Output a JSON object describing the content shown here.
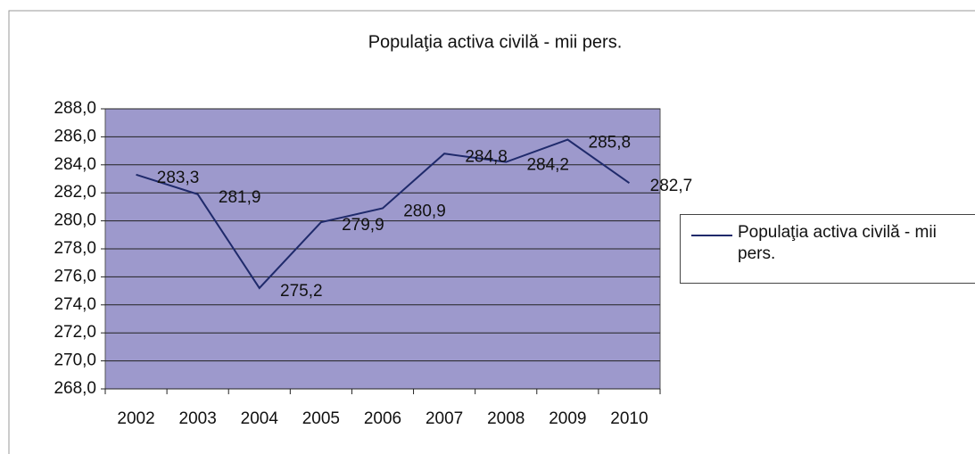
{
  "chart_data": {
    "type": "line",
    "title": "Populaţia activa civilă - mii pers.",
    "categories": [
      "2002",
      "2003",
      "2004",
      "2005",
      "2006",
      "2007",
      "2008",
      "2009",
      "2010"
    ],
    "series": [
      {
        "name": "Populaţia activa civilă - mii pers.",
        "color": "#1f2a6b",
        "values": [
          283.3,
          281.9,
          275.2,
          279.9,
          280.9,
          284.8,
          284.2,
          285.8,
          282.7
        ],
        "value_labels": [
          "283,3",
          "281,9",
          "275,2",
          "279,9",
          "280,9",
          "284,8",
          "284,2",
          "285,8",
          "282,7"
        ]
      }
    ],
    "ylim": [
      268,
      288
    ],
    "yticks": [
      {
        "value": 268,
        "label": "268,0"
      },
      {
        "value": 270,
        "label": "270,0"
      },
      {
        "value": 272,
        "label": "272,0"
      },
      {
        "value": 274,
        "label": "274,0"
      },
      {
        "value": 276,
        "label": "276,0"
      },
      {
        "value": 278,
        "label": "278,0"
      },
      {
        "value": 280,
        "label": "280,0"
      },
      {
        "value": 282,
        "label": "282,0"
      },
      {
        "value": 284,
        "label": "284,0"
      },
      {
        "value": 286,
        "label": "286,0"
      },
      {
        "value": 288,
        "label": "288,0"
      }
    ],
    "grid": true,
    "plot_background": "#9d99cc",
    "legend": "right"
  }
}
